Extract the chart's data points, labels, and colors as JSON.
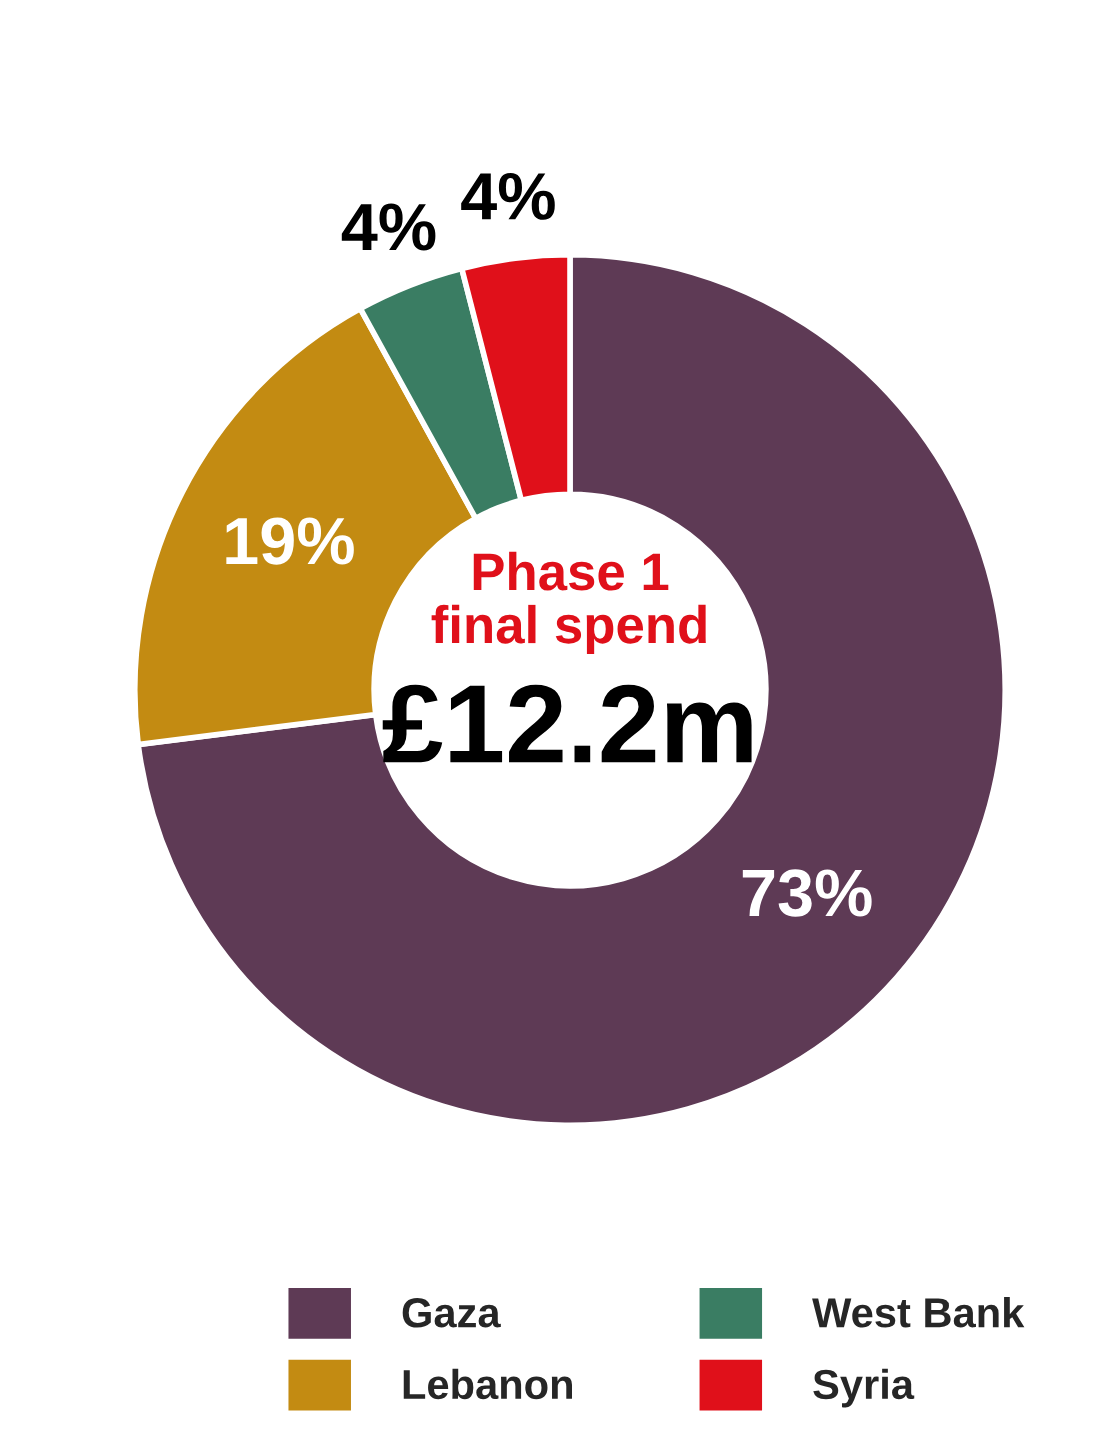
{
  "chart_data": {
    "type": "donut",
    "categories": [
      "Gaza",
      "Lebanon",
      "West Bank",
      "Syria"
    ],
    "values": [
      73,
      19,
      4,
      4
    ],
    "colors": [
      "#5e3a55",
      "#c38b12",
      "#3a7d63",
      "#e0101a"
    ],
    "value_labels": [
      "73%",
      "19%",
      "4%",
      "4%"
    ],
    "annotations": [
      "Phase 1\nfinal spend",
      "£12.2m"
    ],
    "legend": "bottom"
  }
}
